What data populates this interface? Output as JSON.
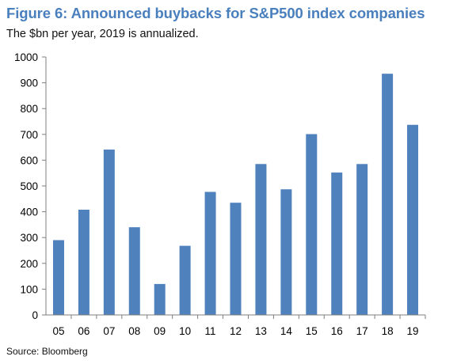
{
  "title": "Figure 6: Announced buybacks for S&P500 index companies",
  "subtitle": "The $bn per year, 2019 is annualized.",
  "source": "Source: Bloomberg",
  "colors": {
    "bar": "#4f81bd",
    "axis": "#7f7f7f",
    "title": "#4a7fbd"
  },
  "chart_data": {
    "type": "bar",
    "categories": [
      "05",
      "06",
      "07",
      "08",
      "09",
      "10",
      "11",
      "12",
      "13",
      "14",
      "15",
      "16",
      "17",
      "18",
      "19"
    ],
    "values": [
      290,
      408,
      641,
      340,
      120,
      268,
      477,
      435,
      585,
      487,
      701,
      552,
      585,
      935,
      737
    ],
    "ylim": [
      0,
      1000
    ],
    "yticks": [
      0,
      100,
      200,
      300,
      400,
      500,
      600,
      700,
      800,
      900,
      1000
    ],
    "grid": false,
    "legend": "none"
  }
}
